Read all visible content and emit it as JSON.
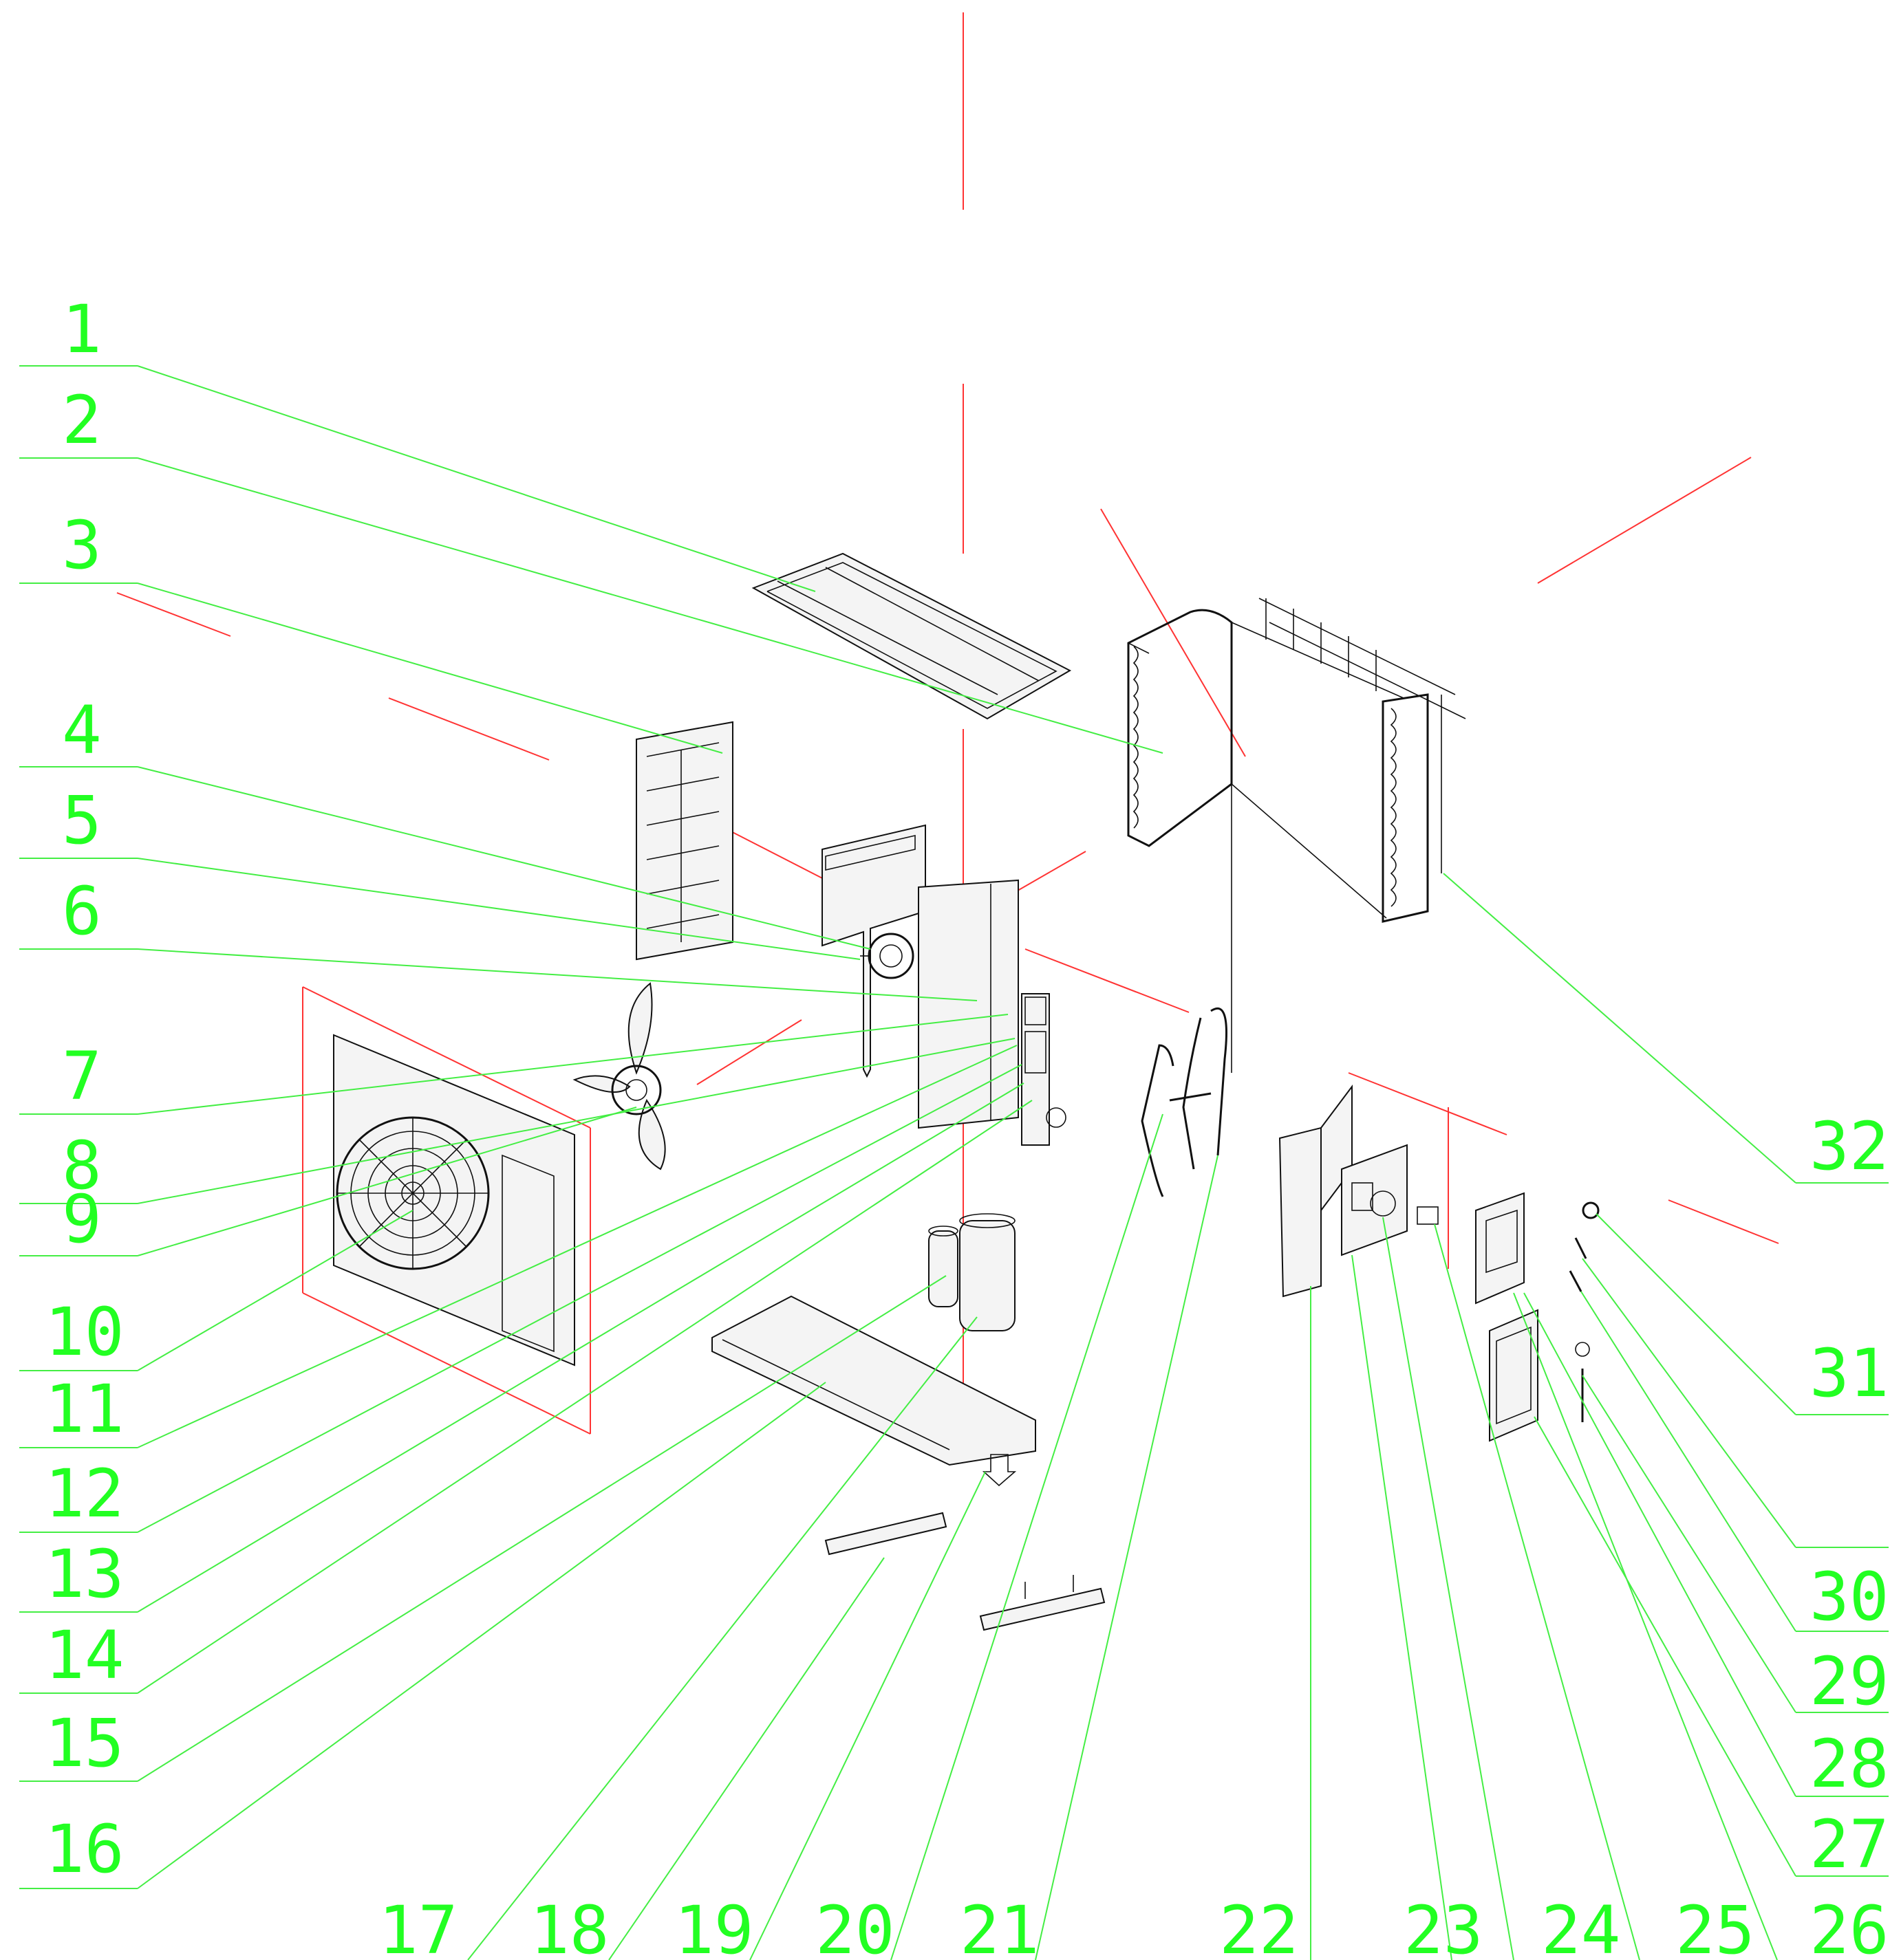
{
  "diagram": {
    "labels": [
      "1",
      "2",
      "3",
      "4",
      "5",
      "6",
      "7",
      "8",
      "9",
      "10",
      "11",
      "12",
      "13",
      "14",
      "15",
      "16",
      "17",
      "18",
      "19",
      "20",
      "21",
      "22",
      "23",
      "24",
      "25",
      "26",
      "27",
      "28",
      "29",
      "30",
      "31",
      "32"
    ],
    "colors": {
      "callout": "#22ff22",
      "leader": "#44ee44",
      "axis": "#ff3333",
      "part": "#111111"
    }
  }
}
